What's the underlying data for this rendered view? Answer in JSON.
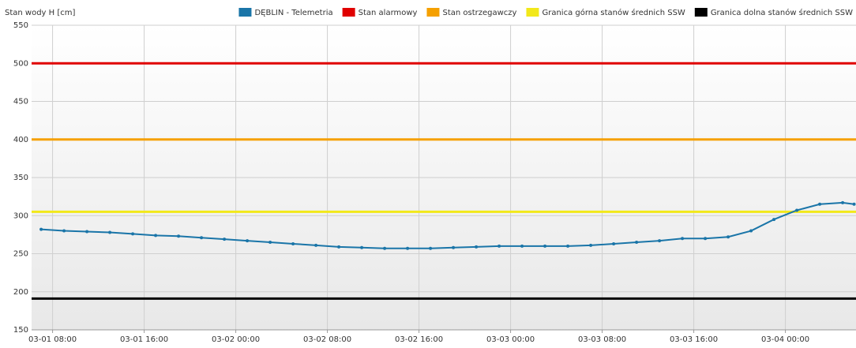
{
  "chart_data": {
    "type": "line",
    "y_label": "Stan wody H [cm]",
    "x": [
      "03-01 07:00",
      "03-01 09:00",
      "03-01 11:00",
      "03-01 13:00",
      "03-01 15:00",
      "03-01 17:00",
      "03-01 19:00",
      "03-01 21:00",
      "03-01 23:00",
      "03-02 01:00",
      "03-02 03:00",
      "03-02 05:00",
      "03-02 07:00",
      "03-02 09:00",
      "03-02 11:00",
      "03-02 13:00",
      "03-02 15:00",
      "03-02 17:00",
      "03-02 19:00",
      "03-02 21:00",
      "03-02 23:00",
      "03-03 01:00",
      "03-03 03:00",
      "03-03 05:00",
      "03-03 07:00",
      "03-03 09:00",
      "03-03 11:00",
      "03-03 13:00",
      "03-03 15:00",
      "03-03 17:00",
      "03-03 19:00",
      "03-03 21:00",
      "03-03 23:00",
      "03-04 01:00",
      "03-04 03:00",
      "03-04 05:00",
      "03-04 06:00"
    ],
    "series": [
      {
        "name": "DĘBLIN - Telemetria",
        "color": "#1a75a8",
        "values": [
          282,
          280,
          279,
          278,
          276,
          274,
          273,
          271,
          269,
          267,
          265,
          263,
          261,
          259,
          258,
          257,
          257,
          257,
          258,
          259,
          260,
          260,
          260,
          260,
          261,
          263,
          265,
          267,
          270,
          270,
          272,
          280,
          295,
          307,
          315,
          317,
          315
        ]
      }
    ],
    "thresholds": [
      {
        "name": "Stan alarmowy",
        "color": "#e00000",
        "value": 500
      },
      {
        "name": "Stan ostrzegawczy",
        "color": "#f5a000",
        "value": 400
      },
      {
        "name": "Granica górna stanów średnich SSW",
        "color": "#f2e81a",
        "value": 305
      },
      {
        "name": "Granica dolna stanów średnich SSW",
        "color": "#000000",
        "value": 191
      }
    ],
    "xlim": [
      "03-01 06:10",
      "03-04 06:10"
    ],
    "xticks": [
      "03-01 08:00",
      "03-01 16:00",
      "03-02 00:00",
      "03-02 08:00",
      "03-02 16:00",
      "03-03 00:00",
      "03-03 08:00",
      "03-03 16:00",
      "03-04 00:00"
    ],
    "ylim": [
      150,
      550
    ],
    "yticks": [
      150,
      200,
      250,
      300,
      350,
      400,
      450,
      500,
      550
    ],
    "grid": true
  }
}
